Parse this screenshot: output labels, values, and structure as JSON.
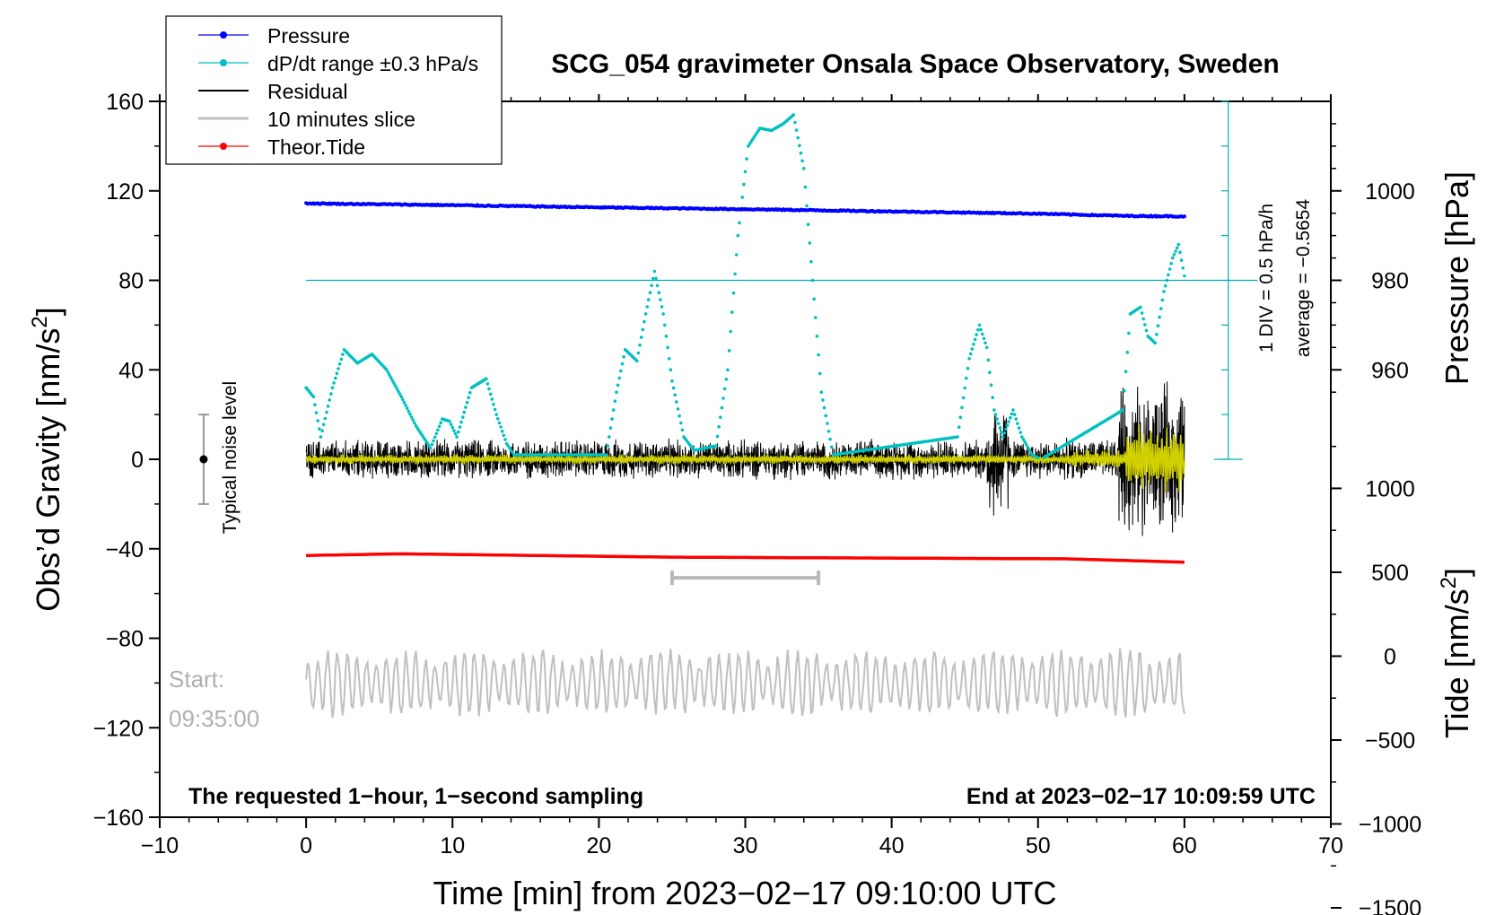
{
  "chart_data": {
    "type": "line",
    "title": "SCG_054 gravimeter Onsala Space Observatory, Sweden",
    "xlabel": "Time [min] from 2023−02−17 09:10:00 UTC",
    "ylabel_left": "Obs’d Gravity [nm/s",
    "ylabel_left_sup": "2",
    "ylabel_left_end": "]",
    "ylabel_pressure": "Pressure [hPa]",
    "ylabel_tide": "Tide [nm/s",
    "ylabel_tide_sup": "2",
    "ylabel_tide_end": "]",
    "xlim": [
      -10,
      70
    ],
    "ylim": [
      -160,
      160
    ],
    "pressure_axis": {
      "range": [
        940,
        1020
      ],
      "ticks": [
        1000,
        980,
        960
      ],
      "tick_labels": [
        "1000",
        "980",
        "960"
      ]
    },
    "tide_axis": {
      "range": [
        -1500,
        1500
      ],
      "ticks": [
        1000,
        500,
        0,
        -500,
        -1000,
        -1500
      ],
      "tick_labels": [
        "1000",
        "500",
        "0",
        "−500",
        "−1000",
        "−1500"
      ]
    },
    "x_ticks": [
      -10,
      0,
      10,
      20,
      30,
      40,
      50,
      60,
      70
    ],
    "x_tick_labels": [
      "−10",
      "0",
      "10",
      "20",
      "30",
      "40",
      "50",
      "60",
      "70"
    ],
    "y_ticks": [
      160,
      120,
      80,
      40,
      0,
      -40,
      -80,
      -120,
      -160
    ],
    "y_tick_labels": [
      "160",
      "120",
      "80",
      "40",
      "0",
      "−40",
      "−80",
      "−120",
      "−160"
    ],
    "legend": {
      "placement": "top-left",
      "entries": [
        {
          "label": "Pressure",
          "color": "#0000ff",
          "marker": "dot"
        },
        {
          "label": "dP/dt range ±0.3 hPa/s",
          "color": "#00c0c0",
          "marker": "dot"
        },
        {
          "label": "Residual",
          "color": "#000000",
          "marker": "none"
        },
        {
          "label": "10 minutes slice",
          "color": "#c0c0c0",
          "marker": "none"
        },
        {
          "label": "Theor.Tide",
          "color": "#ff0000",
          "marker": "dot"
        }
      ]
    },
    "series": [
      {
        "name": "Pressure",
        "color": "#0000ff",
        "axis": "pressure",
        "x": [
          0,
          10,
          20,
          30,
          40,
          50,
          56,
          60
        ],
        "values": [
          997.2,
          996.8,
          996.3,
          995.9,
          995.4,
          994.9,
          994.4,
          994.3
        ]
      },
      {
        "name": "dP/dt",
        "color": "#00c0c0",
        "axis": "left_scaled",
        "x": [
          0,
          0.5,
          1,
          1.8,
          2.6,
          3.5,
          4.5,
          5.5,
          6.5,
          7.5,
          8.5,
          9.3,
          9.8,
          10.3,
          11.3,
          12.3,
          13,
          13.7,
          14.2,
          20.5,
          21.2,
          21.8,
          22.6,
          23.2,
          23.8,
          24.4,
          25,
          25.8,
          26.5,
          28,
          28.8,
          29.5,
          30.2,
          31,
          31.8,
          32.6,
          33.3,
          34,
          34.6,
          35.2,
          36,
          44.5,
          45.3,
          46,
          46.5,
          47,
          47.6,
          48.3,
          48.9,
          49.6,
          50.2,
          55.8,
          56.3,
          57,
          57.5,
          58,
          58.6,
          59.2,
          59.6,
          60
        ],
        "values": [
          32,
          28,
          10,
          32,
          49,
          43,
          47,
          40,
          28,
          15,
          5,
          18,
          17,
          10,
          32,
          36,
          20,
          7,
          2,
          2,
          30,
          49,
          44,
          65,
          84,
          65,
          35,
          10,
          4,
          6,
          40,
          100,
          140,
          148,
          147,
          150,
          154,
          130,
          80,
          30,
          2,
          10,
          45,
          60,
          50,
          22,
          10,
          22,
          10,
          2,
          0,
          22,
          65,
          68,
          55,
          52,
          75,
          90,
          96,
          82
        ]
      },
      {
        "name": "Residual",
        "color": "#000000",
        "axis": "left",
        "x": [
          0,
          60
        ],
        "values": [
          0,
          0
        ],
        "range_min": -85,
        "range_max": 50
      },
      {
        "name": "Residual (smoothed)",
        "color": "#d0d000",
        "axis": "left",
        "x": [
          0,
          60
        ],
        "values": [
          0,
          0
        ]
      },
      {
        "name": "Theor.Tide",
        "color": "#ff0000",
        "axis": "tide",
        "x": [
          0,
          6.5,
          25,
          52,
          60
        ],
        "values": [
          600,
          610,
          590,
          580,
          560
        ]
      },
      {
        "name": "10 minutes slice",
        "color": "#c0c0c0",
        "axis": "left",
        "x": [
          0,
          60
        ],
        "values": [
          -100,
          -100
        ]
      }
    ],
    "annotations": {
      "noise_label": "Typical noise level",
      "noise_bar": {
        "x": -7,
        "y_min": -20,
        "y_max": 20,
        "center": 0
      },
      "dpdt_reference_y": 80,
      "dpdt_scale_label": "1 DIV = 0.5 hPa/h",
      "dpdt_average_label": "average = −0.5654",
      "dpdt_scale_bar": {
        "x": 63,
        "y_min": 0,
        "y_max": 160
      },
      "slice_bracket": {
        "x_start": 25,
        "x_end": 35,
        "y": -53
      },
      "start_label": "Start:",
      "start_time": "09:35:00",
      "bottom_left": "The requested 1−hour, 1−second sampling",
      "bottom_right": "End at 2023−02−17 10:09:59 UTC"
    }
  }
}
